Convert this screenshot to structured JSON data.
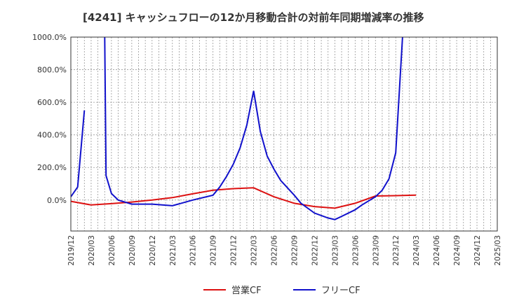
{
  "chart_data": {
    "type": "line",
    "title": "[4241]  キャッシュフローの12か月移動合計の対前年同期増減率の推移",
    "xlabel": "",
    "ylabel": "",
    "ylim": [
      -190,
      1000
    ],
    "yticks": [
      0,
      200,
      400,
      600,
      800,
      1000
    ],
    "ytick_labels": [
      "0.0%",
      "200.0%",
      "400.0%",
      "600.0%",
      "800.0%",
      "1000.0%"
    ],
    "x_tick_labels": [
      "2019/12",
      "2020/03",
      "2020/06",
      "2020/09",
      "2020/12",
      "2021/03",
      "2021/06",
      "2021/09",
      "2021/12",
      "2022/03",
      "2022/06",
      "2022/09",
      "2022/12",
      "2023/03",
      "2023/06",
      "2023/09",
      "2023/12",
      "2024/03",
      "2024/06",
      "2024/09",
      "2024/12",
      "2025/03"
    ],
    "grid": true,
    "legend_position": "bottom",
    "series": [
      {
        "name": "営業CF",
        "color": "#dd1111",
        "points": [
          [
            0,
            -8
          ],
          [
            3,
            -30
          ],
          [
            6,
            -22
          ],
          [
            9,
            -12
          ],
          [
            12,
            0
          ],
          [
            15,
            15
          ],
          [
            18,
            38
          ],
          [
            21,
            60
          ],
          [
            24,
            70
          ],
          [
            27,
            75
          ],
          [
            30,
            20
          ],
          [
            33,
            -20
          ],
          [
            36,
            -40
          ],
          [
            39,
            -50
          ],
          [
            42,
            -20
          ],
          [
            45,
            25
          ],
          [
            48,
            27
          ],
          [
            51,
            30
          ]
        ]
      },
      {
        "name": "フリーCF",
        "color": "#1111cc",
        "points": [
          [
            0,
            20
          ],
          [
            1,
            80
          ],
          [
            2,
            550
          ],
          [
            3,
            null
          ],
          [
            4,
            null
          ],
          [
            5,
            1000
          ],
          [
            5.2,
            150
          ],
          [
            6,
            40
          ],
          [
            7,
            0
          ],
          [
            9,
            -25
          ],
          [
            12,
            -25
          ],
          [
            15,
            -35
          ],
          [
            18,
            0
          ],
          [
            21,
            30
          ],
          [
            22,
            80
          ],
          [
            23,
            145
          ],
          [
            24,
            220
          ],
          [
            25,
            320
          ],
          [
            26,
            460
          ],
          [
            27,
            670
          ],
          [
            28,
            420
          ],
          [
            29,
            270
          ],
          [
            30,
            190
          ],
          [
            31,
            120
          ],
          [
            33,
            30
          ],
          [
            34,
            -20
          ],
          [
            36,
            -80
          ],
          [
            38,
            -110
          ],
          [
            39,
            -120
          ],
          [
            40,
            -100
          ],
          [
            42,
            -60
          ],
          [
            43,
            -30
          ],
          [
            45,
            20
          ],
          [
            46,
            60
          ],
          [
            47,
            130
          ],
          [
            48,
            290
          ],
          [
            49,
            1000
          ]
        ]
      }
    ]
  }
}
